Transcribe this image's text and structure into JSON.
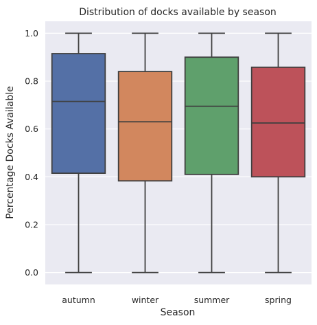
{
  "chart_data": {
    "type": "box",
    "title": "Distribution of docks available by season",
    "xlabel": "Season",
    "ylabel": "Percentage Docks Available",
    "ylim": [
      -0.05,
      1.05
    ],
    "yticks": [
      "0.0",
      "0.2",
      "0.4",
      "0.6",
      "0.8",
      "1.0"
    ],
    "grid": true,
    "categories": [
      "autumn",
      "winter",
      "summer",
      "spring"
    ],
    "boxes": [
      {
        "min": 0.0,
        "q1": 0.415,
        "median": 0.715,
        "q3": 0.915,
        "max": 1.0,
        "color": "#5470a6"
      },
      {
        "min": 0.0,
        "q1": 0.383,
        "median": 0.63,
        "q3": 0.84,
        "max": 1.0,
        "color": "#d2875e"
      },
      {
        "min": 0.0,
        "q1": 0.41,
        "median": 0.695,
        "q3": 0.9,
        "max": 1.0,
        "color": "#5fa06c"
      },
      {
        "min": 0.0,
        "q1": 0.4,
        "median": 0.625,
        "q3": 0.858,
        "max": 1.0,
        "color": "#bd525a"
      }
    ],
    "colors": {
      "background": "#eaeaf2",
      "grid": "#ffffff",
      "line": "#3f3f3f"
    }
  }
}
